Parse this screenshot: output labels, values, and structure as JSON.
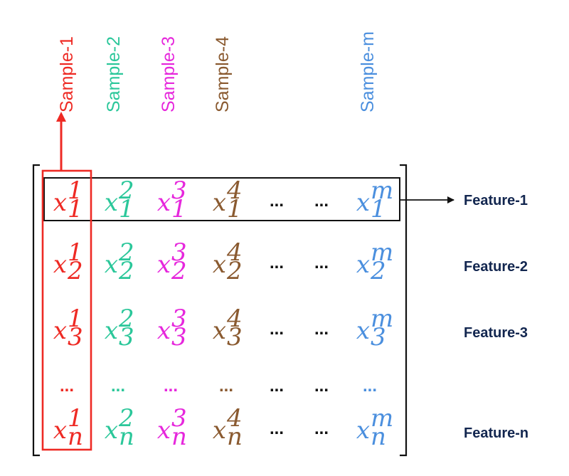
{
  "colors": {
    "sample_1": "#ee2a24",
    "sample_2": "#2bc79a",
    "sample_3": "#e627dc",
    "sample_4": "#8a5a30",
    "ellipsis": "#111111",
    "sample_m": "#4b8fde",
    "feature": "#12264f",
    "frame": "#111111"
  },
  "samples": [
    {
      "id": "s1",
      "label": "Sample-1",
      "superscript": "1",
      "color_key": "sample_1"
    },
    {
      "id": "s2",
      "label": "Sample-2",
      "superscript": "2",
      "color_key": "sample_2"
    },
    {
      "id": "s3",
      "label": "Sample-3",
      "superscript": "3",
      "color_key": "sample_3"
    },
    {
      "id": "s4",
      "label": "Sample-4",
      "superscript": "4",
      "color_key": "sample_4"
    },
    {
      "id": "e1",
      "ellipsis": true
    },
    {
      "id": "e2",
      "ellipsis": true
    },
    {
      "id": "sm",
      "label": "Sample-m",
      "superscript": "m",
      "color_key": "sample_m"
    }
  ],
  "variable": "x",
  "ellipsis_text": "...",
  "features": [
    {
      "label": "Feature-1",
      "subscript": "1"
    },
    {
      "label": "Feature-2",
      "subscript": "2"
    },
    {
      "label": "Feature-3",
      "subscript": "3"
    },
    {
      "label": "",
      "subscript": "",
      "ellipsis": true
    },
    {
      "label": "Feature-n",
      "subscript": "n"
    }
  ]
}
